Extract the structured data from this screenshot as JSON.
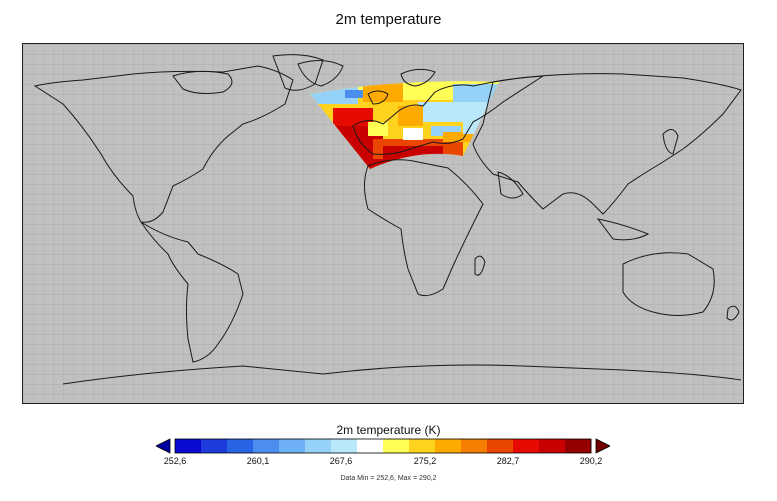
{
  "title": "2m temperature",
  "colorbar": {
    "label": "2m temperature (K)",
    "ticks": [
      "252,6",
      "260,1",
      "267,6",
      "275,2",
      "282,7",
      "290,2"
    ],
    "colors": [
      "#0a0ad2",
      "#1e3cdc",
      "#2864e6",
      "#4c8ef0",
      "#6eb0f5",
      "#96d2f8",
      "#b9e8fb",
      "#ffffff",
      "#ffff55",
      "#ffd21e",
      "#ffaa00",
      "#f57d00",
      "#eb4600",
      "#e60a00",
      "#c80000",
      "#960000"
    ],
    "under_color": "#0000a0",
    "over_color": "#6e0000"
  },
  "data_info": "Data Min = 252,6, Max = 290,2"
}
